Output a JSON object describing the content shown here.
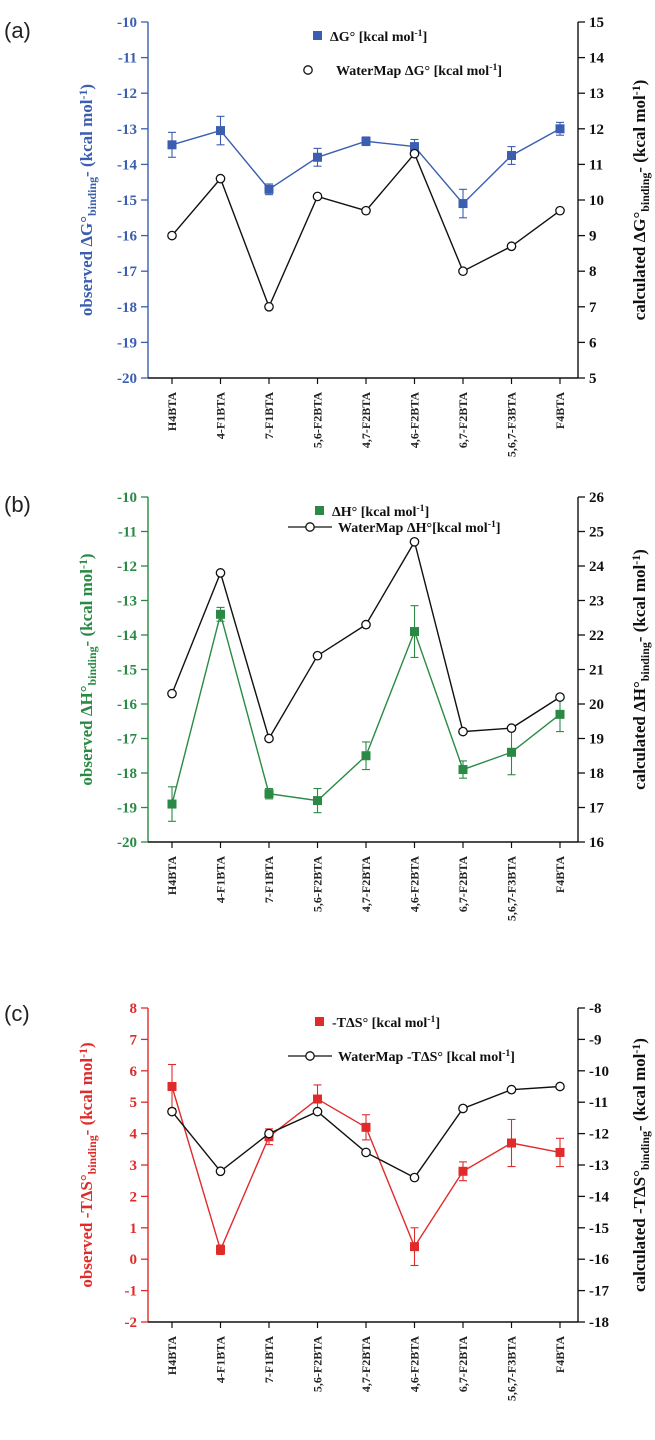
{
  "chart_data": [
    {
      "panel": "(a)",
      "type": "line",
      "categories": [
        "H4BTA",
        "4-F1BTA",
        "7-F1BTA",
        "5,6-F2BTA",
        "4,7-F2BTA",
        "4,6-F2BTA",
        "6,7-F2BTA",
        "5,6,7-F3BTA",
        "F4BTA"
      ],
      "ylabel_left": "observed ΔG°binding- (kcal mol-1)",
      "ylabel_right": "calculated ΔG°binding- (kcal mol-1)",
      "ylim_left": [
        -20,
        -10
      ],
      "ylim_right": [
        5,
        15
      ],
      "left_ticks": [
        "-20",
        "-19",
        "-18",
        "-17",
        "-16",
        "-15",
        "-14",
        "-13",
        "-12",
        "-11",
        "-10"
      ],
      "right_ticks": [
        "5",
        "6",
        "7",
        "8",
        "9",
        "10",
        "11",
        "12",
        "13",
        "14",
        "15"
      ],
      "left_color": "#3b5eb0",
      "right_color": "#111111",
      "series": [
        {
          "name": "ΔG° [kcal mol-1]",
          "axis": "left",
          "color": "#3b5eb0",
          "marker": "square",
          "values": [
            -13.45,
            -13.05,
            -14.7,
            -13.8,
            -13.35,
            -13.5,
            -15.1,
            -13.75,
            -13.0
          ],
          "errors": [
            0.35,
            0.4,
            0.15,
            0.25,
            0.12,
            0.2,
            0.4,
            0.25,
            0.18
          ]
        },
        {
          "name": "WaterMap ΔG° [kcal mol-1]",
          "axis": "right",
          "color": "#111111",
          "marker": "circle",
          "values": [
            9.0,
            10.6,
            7.0,
            10.1,
            9.7,
            11.3,
            8.0,
            8.7,
            9.7
          ]
        }
      ]
    },
    {
      "panel": "(b)",
      "type": "line",
      "categories": [
        "H4BTA",
        "4-F1BTA",
        "7-F1BTA",
        "5,6-F2BTA",
        "4,7-F2BTA",
        "4,6-F2BTA",
        "6,7-F2BTA",
        "5,6,7-F3BTA",
        "F4BTA"
      ],
      "ylabel_left": "observed ΔH°binding- (kcal mol-1)",
      "ylabel_right": "calculated ΔH°binding- (kcal mol-1)",
      "ylim_left": [
        -20,
        -10
      ],
      "ylim_right": [
        16,
        26
      ],
      "left_ticks": [
        "-20",
        "-19",
        "-18",
        "-17",
        "-16",
        "-15",
        "-14",
        "-13",
        "-12",
        "-11",
        "-10"
      ],
      "right_ticks": [
        "16",
        "17",
        "18",
        "19",
        "20",
        "21",
        "22",
        "23",
        "24",
        "25",
        "26"
      ],
      "left_color": "#2a8a45",
      "right_color": "#111111",
      "series": [
        {
          "name": "ΔH° [kcal mol-1]",
          "axis": "left",
          "color": "#2a8a45",
          "marker": "square",
          "values": [
            -18.9,
            -13.4,
            -18.6,
            -18.8,
            -17.5,
            -13.9,
            -17.9,
            -17.4,
            -16.3
          ],
          "errors": [
            0.5,
            0.2,
            0.15,
            0.35,
            0.4,
            0.75,
            0.25,
            0.65,
            0.5
          ]
        },
        {
          "name": "WaterMap ΔH°[kcal mol-1]",
          "axis": "right",
          "color": "#111111",
          "marker": "circle",
          "values": [
            20.3,
            23.8,
            19.0,
            21.4,
            22.3,
            24.7,
            19.2,
            19.3,
            20.2
          ]
        }
      ]
    },
    {
      "panel": "(c)",
      "type": "line",
      "categories": [
        "H4BTA",
        "4-F1BTA",
        "7-F1BTA",
        "5,6-F2BTA",
        "4,7-F2BTA",
        "4,6-F2BTA",
        "6,7-F2BTA",
        "5,6,7-F3BTA",
        "F4BTA"
      ],
      "ylabel_left": "observed -TΔS°binding- (kcal mol-1)",
      "ylabel_right": "calculated -TΔS°binding- (kcal mol-1)",
      "ylim_left": [
        -2,
        8
      ],
      "ylim_right": [
        -18,
        -8
      ],
      "left_ticks": [
        "-2",
        "-1",
        "0",
        "1",
        "2",
        "3",
        "4",
        "5",
        "6",
        "7",
        "8"
      ],
      "right_ticks": [
        "-18",
        "-17",
        "-16",
        "-15",
        "-14",
        "-13",
        "-12",
        "-11",
        "-10",
        "-9",
        "-8"
      ],
      "left_color": "#e02b2b",
      "right_color": "#111111",
      "series": [
        {
          "name": "-TΔS° [kcal mol-1]",
          "axis": "left",
          "color": "#e02b2b",
          "marker": "square",
          "values": [
            5.5,
            0.3,
            3.9,
            5.1,
            4.2,
            0.4,
            2.8,
            3.7,
            3.4
          ],
          "errors": [
            0.7,
            0.15,
            0.25,
            0.45,
            0.4,
            0.6,
            0.3,
            0.75,
            0.45
          ]
        },
        {
          "name": "WaterMap -TΔS° [kcal mol-1]",
          "axis": "right",
          "color": "#111111",
          "marker": "circle",
          "values": [
            -11.3,
            -13.2,
            -12.0,
            -11.3,
            -12.6,
            -13.4,
            -11.2,
            -10.6,
            -10.5
          ]
        }
      ]
    }
  ]
}
